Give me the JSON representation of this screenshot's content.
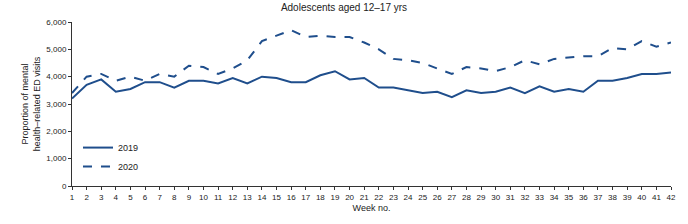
{
  "chart_data": {
    "type": "line",
    "title": "Adolescents aged 12–17 yrs",
    "x_label": "Week no.",
    "y_label": "Proportion of mental health–related ED visits",
    "x": [
      1,
      2,
      3,
      4,
      5,
      6,
      7,
      8,
      9,
      10,
      11,
      12,
      13,
      14,
      15,
      16,
      17,
      18,
      19,
      20,
      21,
      22,
      23,
      24,
      25,
      26,
      27,
      28,
      29,
      30,
      31,
      32,
      33,
      34,
      35,
      36,
      37,
      38,
      39,
      40,
      41,
      42
    ],
    "series": [
      {
        "name": "2019",
        "color": "#1f4e8c",
        "line_style": "solid",
        "values": [
          3200,
          3700,
          3900,
          3450,
          3550,
          3800,
          3800,
          3600,
          3850,
          3850,
          3750,
          3950,
          3750,
          4000,
          3950,
          3800,
          3800,
          4050,
          4200,
          3900,
          3950,
          3600,
          3600,
          3500,
          3400,
          3450,
          3250,
          3500,
          3400,
          3450,
          3600,
          3400,
          3650,
          3450,
          3550,
          3450,
          3850,
          3850,
          3950,
          4100,
          4100,
          4150
        ]
      },
      {
        "name": "2020",
        "color": "#1f4e8c",
        "line_style": "dash",
        "values": [
          3400,
          4000,
          4100,
          3850,
          4000,
          3850,
          4100,
          4000,
          4400,
          4350,
          4100,
          4300,
          4600,
          5300,
          5500,
          5700,
          5450,
          5500,
          5450,
          5450,
          5250,
          5000,
          4650,
          4600,
          4500,
          4300,
          4100,
          4350,
          4300,
          4200,
          4350,
          4600,
          4450,
          4650,
          4700,
          4750,
          4750,
          5050,
          5000,
          5300,
          5100,
          5250
        ]
      }
    ],
    "xlim": [
      1,
      42
    ],
    "xticks": [
      1,
      2,
      3,
      4,
      5,
      6,
      7,
      8,
      9,
      10,
      11,
      12,
      13,
      14,
      15,
      16,
      17,
      18,
      19,
      20,
      21,
      22,
      23,
      24,
      25,
      26,
      27,
      28,
      29,
      30,
      31,
      32,
      33,
      34,
      35,
      36,
      37,
      38,
      39,
      40,
      41,
      42
    ],
    "ylim": [
      0,
      6000
    ],
    "yticks": [
      0,
      {
        "value": 1000,
        "label": "1,000"
      },
      {
        "value": 2000,
        "label": "2,000"
      },
      {
        "value": 3000,
        "label": "3,000"
      },
      {
        "value": 4000,
        "label": "4,000"
      },
      {
        "value": 5000,
        "label": "5,000"
      },
      {
        "value": 6000,
        "label": "6,000"
      }
    ],
    "grid": false,
    "legend": "lower left"
  }
}
